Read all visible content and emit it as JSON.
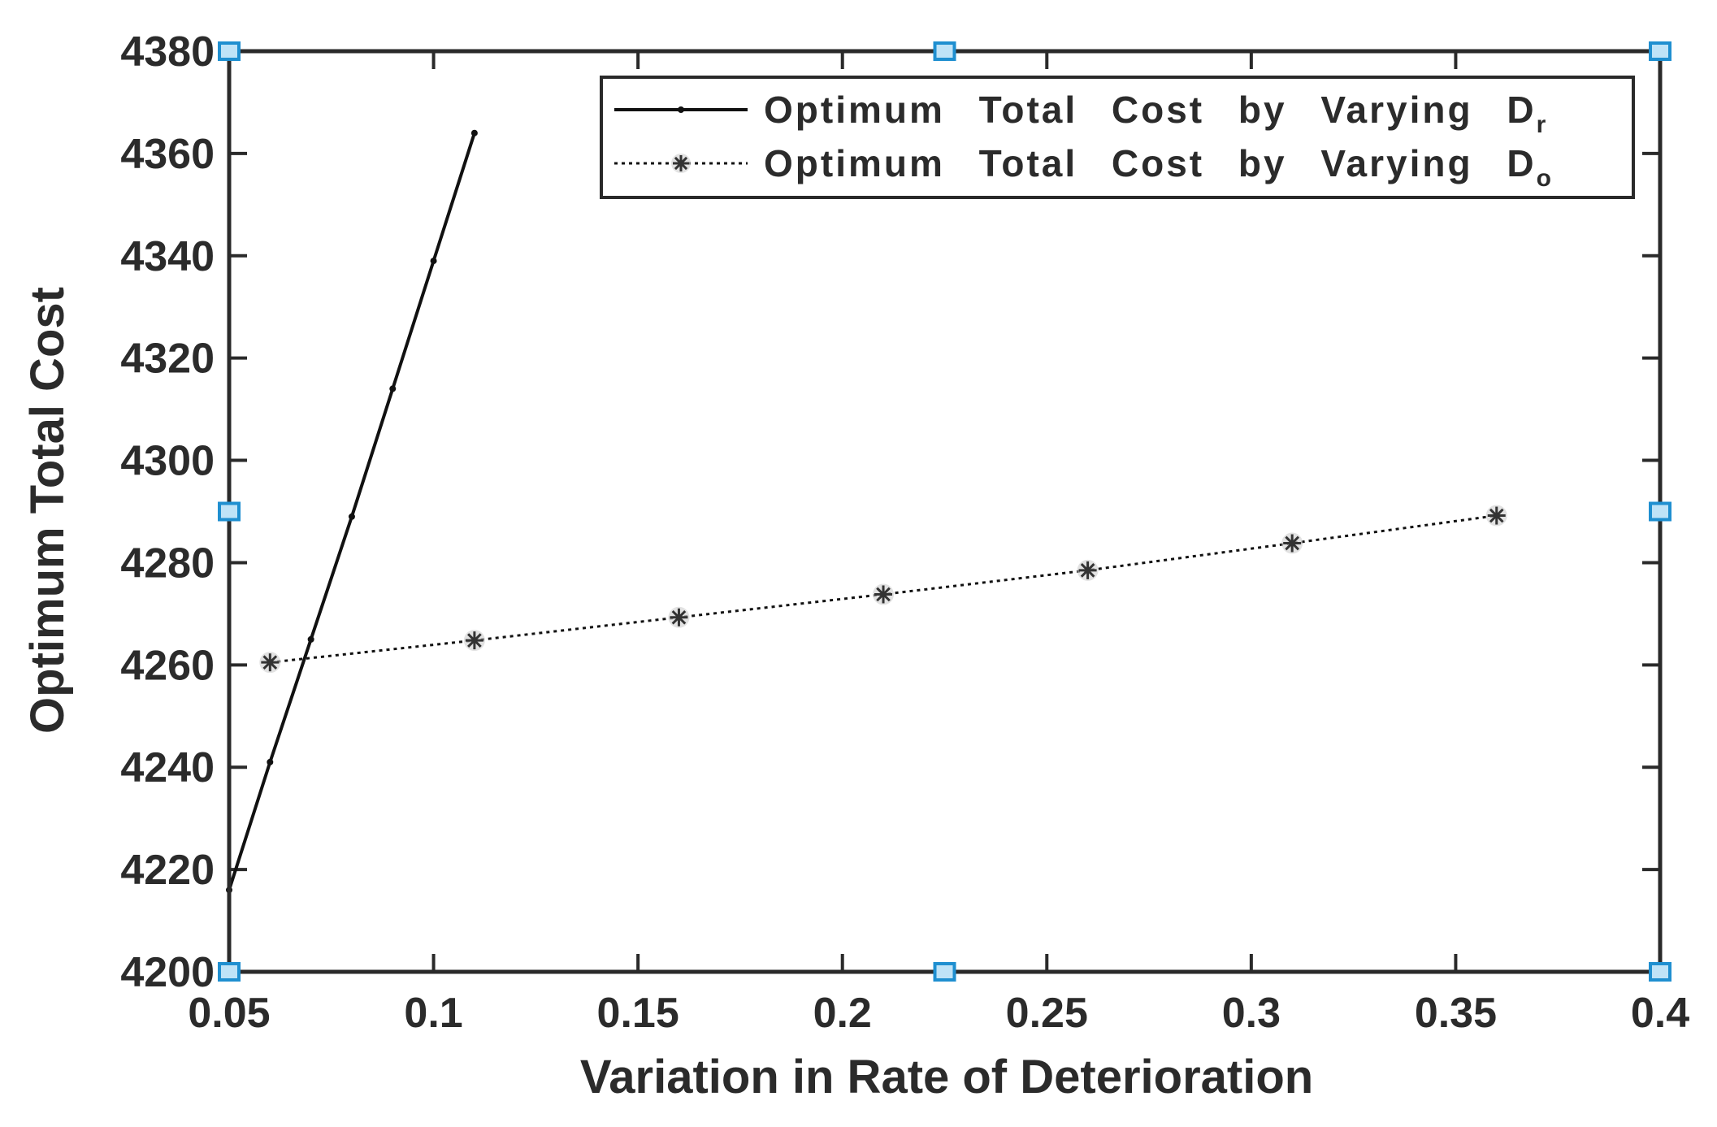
{
  "chart_data": {
    "type": "line",
    "title": "",
    "xlabel": "Variation in Rate of Deterioration",
    "ylabel": "Optimum Total Cost",
    "xlim": [
      0.05,
      0.4
    ],
    "ylim": [
      4200,
      4380
    ],
    "xticks": [
      0.05,
      0.1,
      0.15,
      0.2,
      0.25,
      0.3,
      0.35,
      0.4
    ],
    "xtick_labels": [
      "0.05",
      "0.1",
      "0.15",
      "0.2",
      "0.25",
      "0.3",
      "0.35",
      "0.4"
    ],
    "yticks": [
      4200,
      4220,
      4240,
      4260,
      4280,
      4300,
      4320,
      4340,
      4360,
      4380
    ],
    "ytick_labels": [
      "4200",
      "4220",
      "4240",
      "4260",
      "4280",
      "4300",
      "4320",
      "4340",
      "4360",
      "4380"
    ],
    "grid": false,
    "legend_position": "top-right",
    "series": [
      {
        "name": "Optimum Total Cost by Varying D",
        "subscript": "r",
        "line_style": "solid",
        "marker": "dot",
        "color": "#111111",
        "x": [
          0.05,
          0.06,
          0.07,
          0.08,
          0.09,
          0.1,
          0.11
        ],
        "y": [
          4216,
          4241,
          4265,
          4289,
          4314,
          4339,
          4364
        ]
      },
      {
        "name": "Optimum Total Cost by Varying D",
        "subscript": "o",
        "line_style": "dotted",
        "marker": "asterisk",
        "color": "#111111",
        "x": [
          0.06,
          0.11,
          0.16,
          0.21,
          0.26,
          0.31,
          0.36
        ],
        "y": [
          4260.5,
          4264.8,
          4269.3,
          4273.8,
          4278.5,
          4283.8,
          4289.2
        ]
      }
    ],
    "handle_color": "#1f8fd0"
  }
}
